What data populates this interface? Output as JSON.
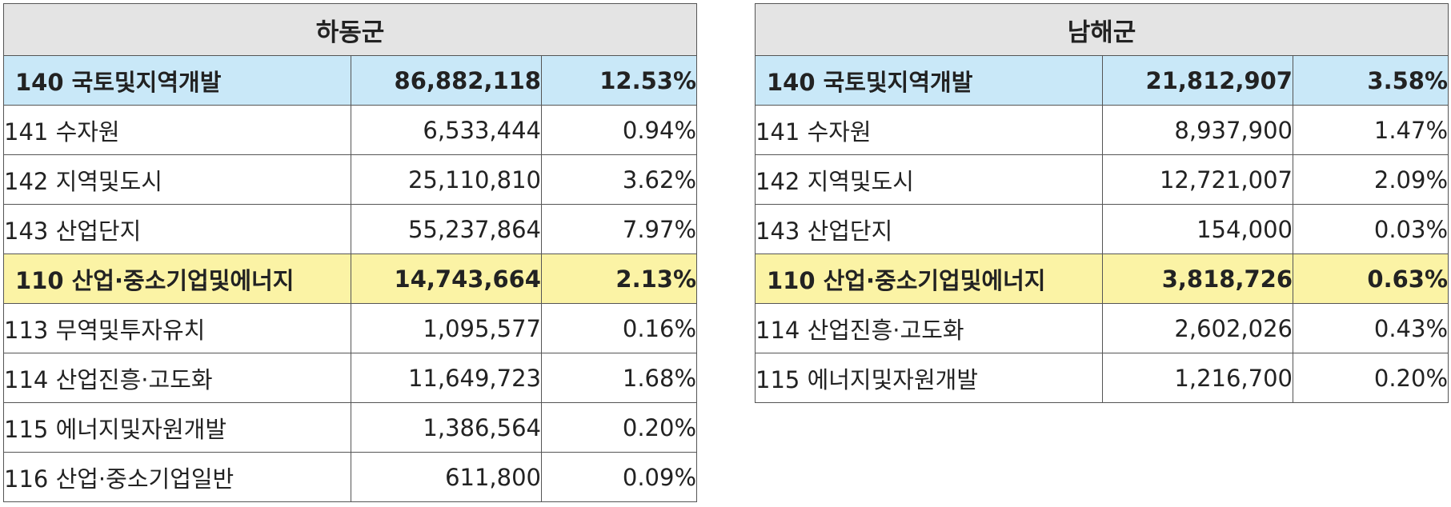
{
  "tables": [
    {
      "title": "하동군",
      "rows": [
        {
          "name": "140 국토및지역개발",
          "amount": "86,882,118",
          "percent": "12.53%",
          "type": "blue"
        },
        {
          "name": "141 수자원",
          "amount": "6,533,444",
          "percent": "0.94%",
          "type": "sub"
        },
        {
          "name": "142 지역및도시",
          "amount": "25,110,810",
          "percent": "3.62%",
          "type": "sub"
        },
        {
          "name": "143 산업단지",
          "amount": "55,237,864",
          "percent": "7.97%",
          "type": "sub"
        },
        {
          "name": "110 산업·중소기업및에너지",
          "amount": "14,743,664",
          "percent": "2.13%",
          "type": "yellow"
        },
        {
          "name": "113 무역및투자유치",
          "amount": "1,095,577",
          "percent": "0.16%",
          "type": "sub"
        },
        {
          "name": "114 산업진흥·고도화",
          "amount": "11,649,723",
          "percent": "1.68%",
          "type": "sub"
        },
        {
          "name": "115 에너지및자원개발",
          "amount": "1,386,564",
          "percent": "0.20%",
          "type": "sub"
        },
        {
          "name": "116 산업·중소기업일반",
          "amount": "611,800",
          "percent": "0.09%",
          "type": "sub"
        }
      ]
    },
    {
      "title": "남해군",
      "rows": [
        {
          "name": "140 국토및지역개발",
          "amount": "21,812,907",
          "percent": "3.58%",
          "type": "blue"
        },
        {
          "name": "141 수자원",
          "amount": "8,937,900",
          "percent": "1.47%",
          "type": "sub"
        },
        {
          "name": "142 지역및도시",
          "amount": "12,721,007",
          "percent": "2.09%",
          "type": "sub"
        },
        {
          "name": "143 산업단지",
          "amount": "154,000",
          "percent": "0.03%",
          "type": "sub"
        },
        {
          "name": "110 산업·중소기업및에너지",
          "amount": "3,818,726",
          "percent": "0.63%",
          "type": "yellow"
        },
        {
          "name": "114 산업진흥·고도화",
          "amount": "2,602,026",
          "percent": "0.43%",
          "type": "sub"
        },
        {
          "name": "115 에너지및자원개발",
          "amount": "1,216,700",
          "percent": "0.20%",
          "type": "sub"
        }
      ]
    }
  ]
}
